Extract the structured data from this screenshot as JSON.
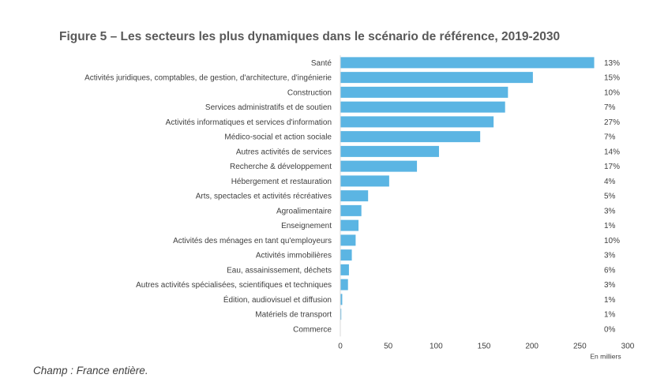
{
  "title": "Figure 5 – Les secteurs les plus dynamiques dans le scénario de référence, 2019-2030",
  "footnote": "Champ : France entière.",
  "chart_data": {
    "type": "bar",
    "orientation": "horizontal",
    "categories": [
      "Santé",
      "Activités juridiques, comptables, de gestion, d'architecture, d'ingénierie",
      "Construction",
      "Services administratifs et de soutien",
      "Activités informatiques et services d'information",
      "Médico-social et action sociale",
      "Autres activités de services",
      "Recherche & développement",
      "Hébergement et restauration",
      "Arts, spectacles et activités récréatives",
      "Agroalimentaire",
      "Enseignement",
      "Activités des ménages en tant qu'employeurs",
      "Activités immobilières",
      "Eau, assainissement, déchets",
      "Autres activités spécialisées, scientifiques et techniques",
      "Édition, audiovisuel et diffusion",
      "Matériels de transport",
      "Commerce"
    ],
    "values": [
      265,
      201,
      175,
      172,
      160,
      146,
      103,
      80,
      51,
      29,
      22,
      19,
      16,
      12,
      9,
      8,
      2,
      1,
      0
    ],
    "percent_labels": [
      "13%",
      "15%",
      "10%",
      "7%",
      "27%",
      "7%",
      "14%",
      "17%",
      "4%",
      "5%",
      "3%",
      "1%",
      "10%",
      "3%",
      "6%",
      "3%",
      "1%",
      "1%",
      "0%"
    ],
    "xlabel": "En milliers",
    "xlim": [
      0,
      300
    ],
    "xticks": [
      "0",
      "50",
      "100",
      "150",
      "200",
      "250",
      "300"
    ],
    "bar_color": "#5BB5E3",
    "grid": false,
    "legend": "none"
  }
}
